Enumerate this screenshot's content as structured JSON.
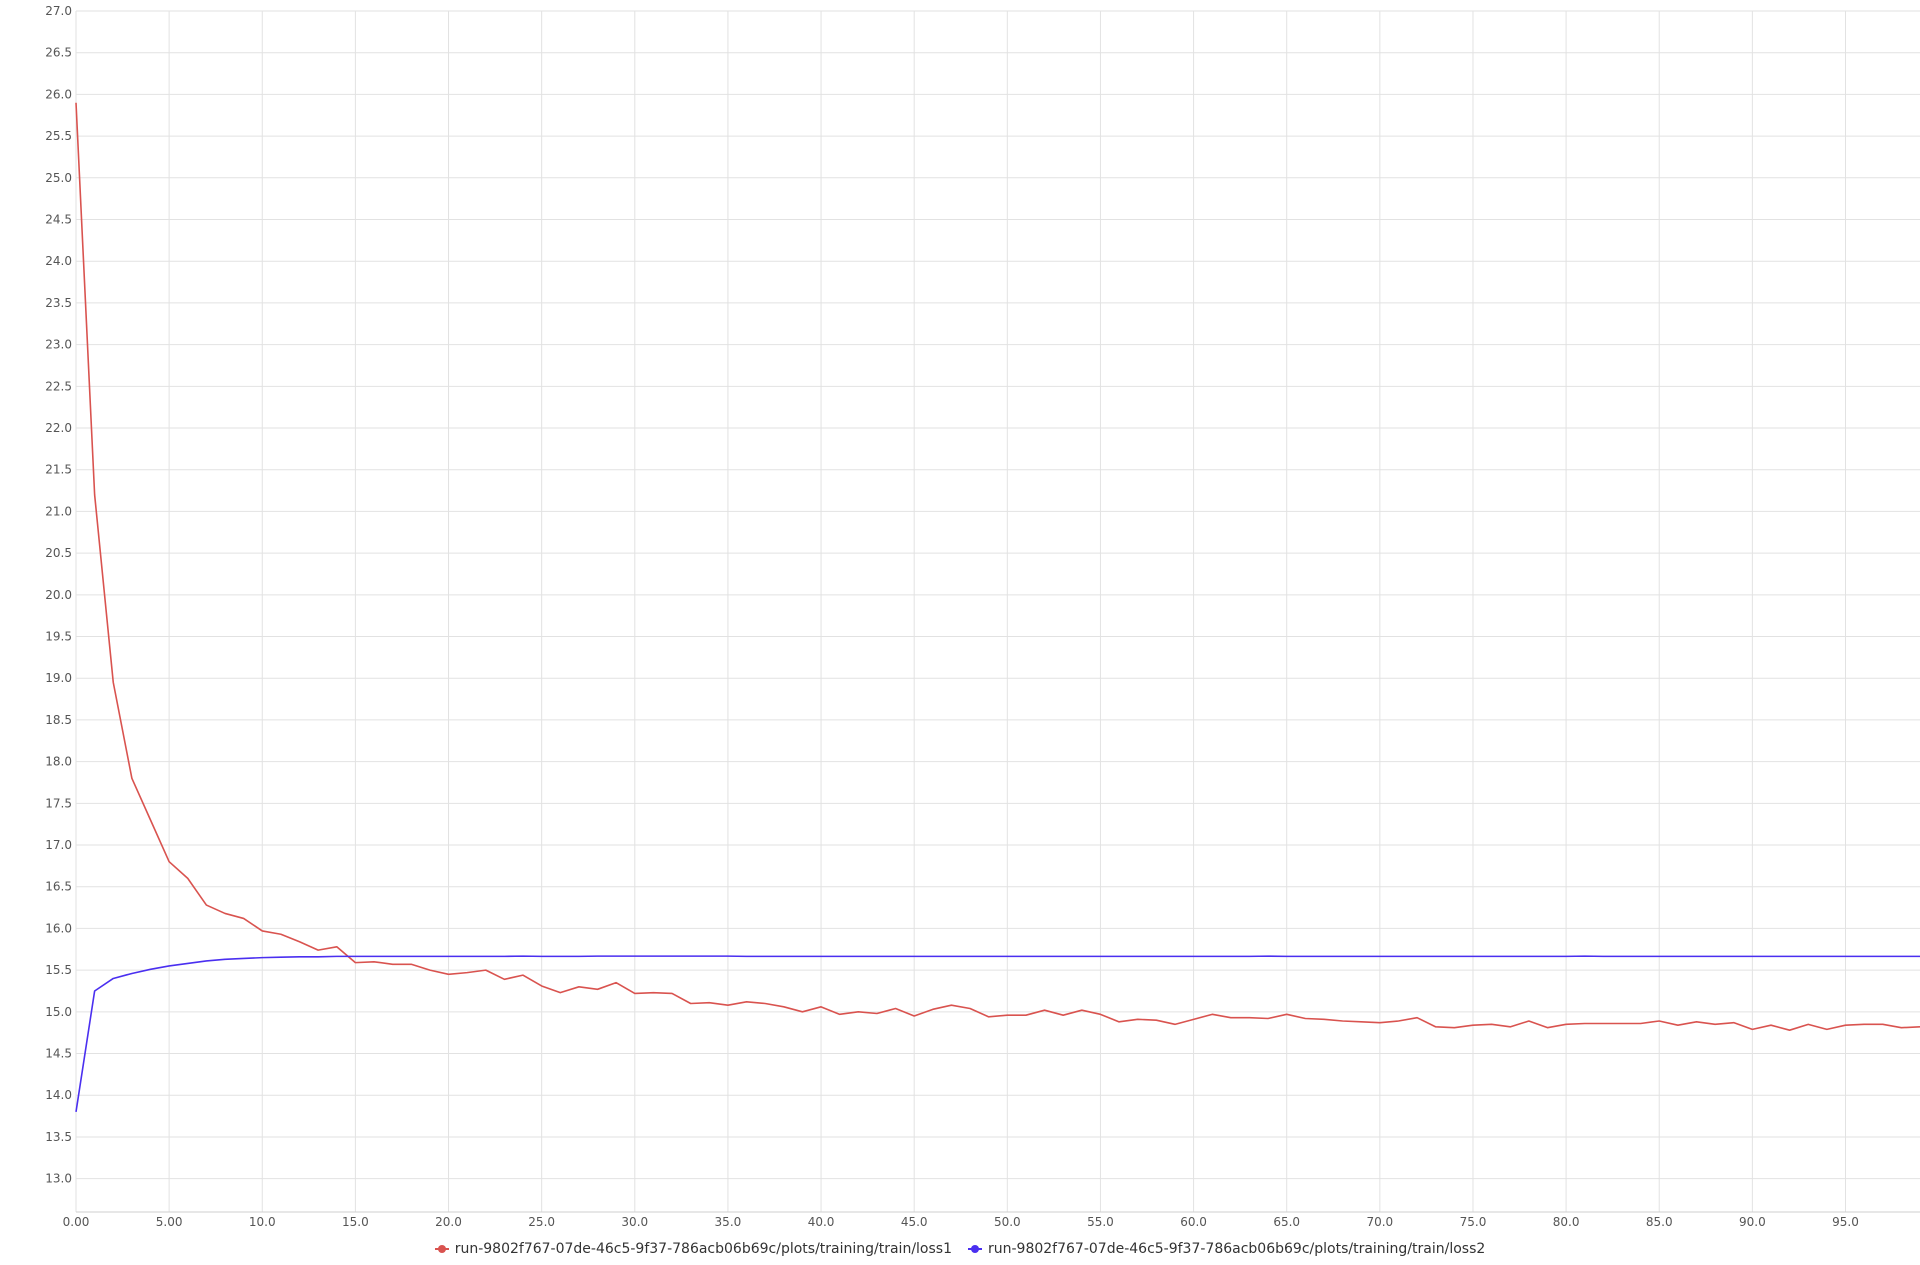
{
  "chart_data": {
    "type": "line",
    "title": "",
    "xlabel": "",
    "ylabel": "",
    "xlim": [
      0,
      99
    ],
    "ylim": [
      12.6,
      27.0
    ],
    "xticks": [
      {
        "value": 0,
        "label": "0.00"
      },
      {
        "value": 5,
        "label": "5.00"
      },
      {
        "value": 10,
        "label": "10.0"
      },
      {
        "value": 15,
        "label": "15.0"
      },
      {
        "value": 20,
        "label": "20.0"
      },
      {
        "value": 25,
        "label": "25.0"
      },
      {
        "value": 30,
        "label": "30.0"
      },
      {
        "value": 35,
        "label": "35.0"
      },
      {
        "value": 40,
        "label": "40.0"
      },
      {
        "value": 45,
        "label": "45.0"
      },
      {
        "value": 50,
        "label": "50.0"
      },
      {
        "value": 55,
        "label": "55.0"
      },
      {
        "value": 60,
        "label": "60.0"
      },
      {
        "value": 65,
        "label": "65.0"
      },
      {
        "value": 70,
        "label": "70.0"
      },
      {
        "value": 75,
        "label": "75.0"
      },
      {
        "value": 80,
        "label": "80.0"
      },
      {
        "value": 85,
        "label": "85.0"
      },
      {
        "value": 90,
        "label": "90.0"
      },
      {
        "value": 95,
        "label": "95.0"
      }
    ],
    "yticks": [
      {
        "value": 13.0,
        "label": "13.0"
      },
      {
        "value": 13.5,
        "label": "13.5"
      },
      {
        "value": 14.0,
        "label": "14.0"
      },
      {
        "value": 14.5,
        "label": "14.5"
      },
      {
        "value": 15.0,
        "label": "15.0"
      },
      {
        "value": 15.5,
        "label": "15.5"
      },
      {
        "value": 16.0,
        "label": "16.0"
      },
      {
        "value": 16.5,
        "label": "16.5"
      },
      {
        "value": 17.0,
        "label": "17.0"
      },
      {
        "value": 17.5,
        "label": "17.5"
      },
      {
        "value": 18.0,
        "label": "18.0"
      },
      {
        "value": 18.5,
        "label": "18.5"
      },
      {
        "value": 19.0,
        "label": "19.0"
      },
      {
        "value": 19.5,
        "label": "19.5"
      },
      {
        "value": 20.0,
        "label": "20.0"
      },
      {
        "value": 20.5,
        "label": "20.5"
      },
      {
        "value": 21.0,
        "label": "21.0"
      },
      {
        "value": 21.5,
        "label": "21.5"
      },
      {
        "value": 22.0,
        "label": "22.0"
      },
      {
        "value": 22.5,
        "label": "22.5"
      },
      {
        "value": 23.0,
        "label": "23.0"
      },
      {
        "value": 23.5,
        "label": "23.5"
      },
      {
        "value": 24.0,
        "label": "24.0"
      },
      {
        "value": 24.5,
        "label": "24.5"
      },
      {
        "value": 25.0,
        "label": "25.0"
      },
      {
        "value": 25.5,
        "label": "25.5"
      },
      {
        "value": 26.0,
        "label": "26.0"
      },
      {
        "value": 26.5,
        "label": "26.5"
      },
      {
        "value": 27.0,
        "label": "27.0"
      }
    ],
    "grid": true,
    "legend_position": "bottom-center",
    "series": [
      {
        "name": "run-9802f767-07de-46c5-9f37-786acb06b69c/plots/training/train/loss1",
        "color": "#d9534f",
        "y": [
          25.9,
          21.2,
          18.95,
          17.8,
          17.3,
          16.8,
          16.6,
          16.28,
          16.18,
          16.12,
          15.97,
          15.93,
          15.84,
          15.74,
          15.78,
          15.59,
          15.6,
          15.57,
          15.57,
          15.5,
          15.45,
          15.47,
          15.5,
          15.39,
          15.44,
          15.31,
          15.23,
          15.3,
          15.27,
          15.35,
          15.22,
          15.23,
          15.22,
          15.1,
          15.11,
          15.08,
          15.12,
          15.1,
          15.06,
          15.0,
          15.06,
          14.97,
          15.0,
          14.98,
          15.04,
          14.95,
          15.03,
          15.08,
          15.04,
          14.94,
          14.96,
          14.96,
          15.02,
          14.96,
          15.02,
          14.97,
          14.88,
          14.91,
          14.9,
          14.85,
          14.91,
          14.97,
          14.93,
          14.93,
          14.92,
          14.97,
          14.92,
          14.91,
          14.89,
          14.88,
          14.87,
          14.89,
          14.93,
          14.82,
          14.81,
          14.84,
          14.85,
          14.82,
          14.89,
          14.81,
          14.85,
          14.86,
          14.86,
          14.86,
          14.86,
          14.89,
          14.84,
          14.88,
          14.85,
          14.87,
          14.79,
          14.84,
          14.78,
          14.85,
          14.79,
          14.84,
          14.85,
          14.85,
          14.81,
          14.82
        ]
      },
      {
        "name": "run-9802f767-07de-46c5-9f37-786acb06b69c/plots/training/train/loss2",
        "color": "#4a2ff0",
        "y": [
          13.8,
          15.25,
          15.4,
          15.46,
          15.51,
          15.55,
          15.58,
          15.61,
          15.63,
          15.64,
          15.65,
          15.655,
          15.66,
          15.66,
          15.665,
          15.665,
          15.665,
          15.665,
          15.665,
          15.665,
          15.665,
          15.665,
          15.665,
          15.665,
          15.668,
          15.665,
          15.665,
          15.665,
          15.668,
          15.668,
          15.668,
          15.668,
          15.668,
          15.668,
          15.668,
          15.668,
          15.665,
          15.665,
          15.665,
          15.665,
          15.665,
          15.665,
          15.665,
          15.665,
          15.665,
          15.665,
          15.665,
          15.665,
          15.665,
          15.665,
          15.665,
          15.665,
          15.665,
          15.665,
          15.665,
          15.665,
          15.665,
          15.665,
          15.665,
          15.665,
          15.665,
          15.665,
          15.665,
          15.665,
          15.668,
          15.665,
          15.665,
          15.665,
          15.665,
          15.665,
          15.665,
          15.665,
          15.665,
          15.665,
          15.665,
          15.665,
          15.665,
          15.665,
          15.665,
          15.665,
          15.665,
          15.668,
          15.665,
          15.665,
          15.665,
          15.665,
          15.665,
          15.665,
          15.665,
          15.665,
          15.665,
          15.665,
          15.665,
          15.665,
          15.665,
          15.665,
          15.665,
          15.665,
          15.665,
          15.665
        ]
      }
    ]
  }
}
